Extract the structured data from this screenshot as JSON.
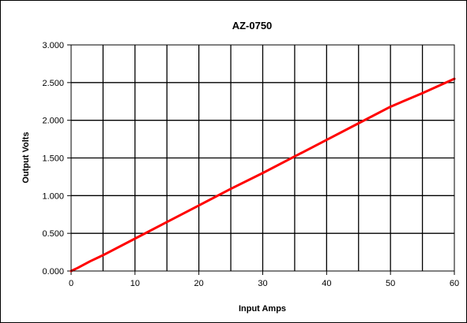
{
  "chart_data": {
    "type": "line",
    "title": "AZ-0750",
    "xlabel": "Input Amps",
    "ylabel": "Output Volts",
    "xlim": [
      0,
      60
    ],
    "ylim": [
      0,
      3
    ],
    "x_ticks": [
      "0",
      "10",
      "20",
      "30",
      "40",
      "50",
      "60"
    ],
    "y_ticks": [
      "0.000",
      "0.500",
      "1.000",
      "1.500",
      "2.000",
      "2.500",
      "3.000"
    ],
    "grid": true,
    "x_grid_step": 5,
    "y_grid_step": 0.5,
    "legend": "none",
    "series": [
      {
        "color": "#ff0000",
        "x": [
          0,
          1,
          3,
          5,
          10,
          15,
          20,
          25,
          30,
          35,
          40,
          45,
          50,
          55,
          60
        ],
        "y": [
          0.0,
          0.04,
          0.13,
          0.21,
          0.43,
          0.65,
          0.87,
          1.09,
          1.3,
          1.52,
          1.74,
          1.96,
          2.18,
          2.36,
          2.55
        ]
      }
    ]
  }
}
